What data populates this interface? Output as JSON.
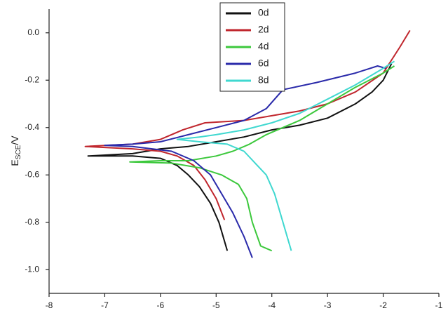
{
  "chart_data": {
    "type": "line",
    "ylabel": {
      "main": "E",
      "sub": "SCE",
      "unit": "/V"
    },
    "xlim": [
      -8,
      -1
    ],
    "ylim": [
      -1.1,
      0.1
    ],
    "xticks": [
      -8,
      -7,
      -6,
      -5,
      -4,
      -3,
      -2,
      -1
    ],
    "yticks": [
      {
        "value": 0,
        "label": "0.0"
      },
      -0.2,
      -0.4,
      -0.6,
      -0.8,
      {
        "value": -1,
        "label": "-1.0"
      }
    ],
    "legend": "upper center",
    "series": [
      {
        "name": "0d",
        "color": "#111111",
        "x": [
          -4.8,
          -4.95,
          -5.1,
          -5.3,
          -5.5,
          -5.7,
          -6.0,
          -6.5,
          -7.3,
          -6.5,
          -6.0,
          -5.5,
          -5.0,
          -4.5,
          -4.0,
          -3.5,
          -3.0,
          -2.5,
          -2.2,
          -2.0,
          -1.85
        ],
        "values": [
          -0.92,
          -0.8,
          -0.72,
          -0.65,
          -0.6,
          -0.56,
          -0.53,
          -0.52,
          -0.52,
          -0.51,
          -0.49,
          -0.48,
          -0.46,
          -0.44,
          -0.41,
          -0.39,
          -0.36,
          -0.3,
          -0.25,
          -0.2,
          -0.13
        ]
      },
      {
        "name": "2d",
        "color": "#c0262d",
        "x": [
          -4.85,
          -5.0,
          -5.2,
          -5.4,
          -5.7,
          -6.0,
          -6.5,
          -7.35,
          -6.5,
          -6.0,
          -5.6,
          -5.2,
          -4.5,
          -4.0,
          -3.5,
          -3.0,
          -2.5,
          -2.0,
          -1.7,
          -1.52
        ],
        "values": [
          -0.79,
          -0.7,
          -0.62,
          -0.56,
          -0.52,
          -0.5,
          -0.49,
          -0.48,
          -0.47,
          -0.45,
          -0.41,
          -0.38,
          -0.37,
          -0.35,
          -0.33,
          -0.3,
          -0.25,
          -0.17,
          -0.06,
          0.01
        ]
      },
      {
        "name": "4d",
        "color": "#3cc83c",
        "x": [
          -4.0,
          -4.2,
          -4.35,
          -4.45,
          -4.6,
          -4.9,
          -5.3,
          -5.8,
          -6.55,
          -6.0,
          -5.5,
          -5.0,
          -4.7,
          -4.4,
          -4.1,
          -3.5,
          -3.0,
          -2.5,
          -2.0,
          -1.8
        ],
        "values": [
          -0.92,
          -0.9,
          -0.8,
          -0.7,
          -0.64,
          -0.6,
          -0.57,
          -0.55,
          -0.545,
          -0.54,
          -0.54,
          -0.52,
          -0.5,
          -0.47,
          -0.43,
          -0.37,
          -0.3,
          -0.23,
          -0.17,
          -0.14
        ]
      },
      {
        "name": "6d",
        "color": "#2a2aaa",
        "x": [
          -4.35,
          -4.5,
          -4.7,
          -4.9,
          -5.1,
          -5.4,
          -5.8,
          -6.5,
          -7.0,
          -6.5,
          -6.0,
          -5.5,
          -5.0,
          -4.5,
          -4.1,
          -3.8,
          -3.2,
          -2.5,
          -2.1,
          -1.95
        ],
        "values": [
          -0.95,
          -0.86,
          -0.76,
          -0.68,
          -0.6,
          -0.54,
          -0.5,
          -0.48,
          -0.475,
          -0.47,
          -0.46,
          -0.43,
          -0.4,
          -0.37,
          -0.32,
          -0.24,
          -0.21,
          -0.17,
          -0.14,
          -0.15
        ]
      },
      {
        "name": "8d",
        "color": "#40d8d0",
        "x": [
          -3.65,
          -3.8,
          -3.95,
          -4.1,
          -4.3,
          -4.5,
          -4.8,
          -5.3,
          -5.7,
          -5.3,
          -5.0,
          -4.5,
          -4.0,
          -3.5,
          -3.0,
          -2.5,
          -2.0,
          -1.8
        ],
        "values": [
          -0.92,
          -0.8,
          -0.68,
          -0.6,
          -0.55,
          -0.5,
          -0.47,
          -0.46,
          -0.45,
          -0.44,
          -0.43,
          -0.41,
          -0.38,
          -0.34,
          -0.28,
          -0.22,
          -0.15,
          -0.12
        ]
      }
    ]
  }
}
